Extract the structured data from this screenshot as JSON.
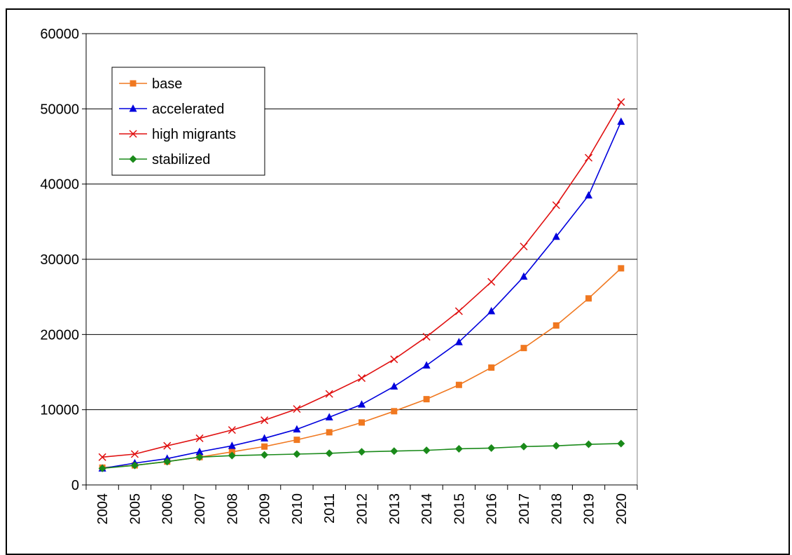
{
  "page": {
    "title": ""
  },
  "chart_data": {
    "type": "line",
    "title": "",
    "xlabel": "",
    "ylabel": "",
    "x": [
      "2004",
      "2005",
      "2006",
      "2007",
      "2008",
      "2009",
      "2010",
      "2011",
      "2012",
      "2013",
      "2014",
      "2015",
      "2016",
      "2017",
      "2018",
      "2019",
      "2020"
    ],
    "ylim": [
      0,
      60000
    ],
    "yticks": [
      0,
      10000,
      20000,
      30000,
      40000,
      50000,
      60000
    ],
    "ytick_labels": [
      "0",
      "10000",
      "20000",
      "30000",
      "40000",
      "50000",
      "60000"
    ],
    "grid": "horizontal",
    "legend_position": "top-left",
    "series": [
      {
        "name": "base",
        "color": "#f07820",
        "marker": "square",
        "values": [
          2300,
          2600,
          3100,
          3700,
          4400,
          5100,
          6000,
          7000,
          8300,
          9800,
          11400,
          13300,
          15600,
          18200,
          21200,
          24800,
          28800
        ]
      },
      {
        "name": "accelerated",
        "color": "#0000dd",
        "marker": "triangle",
        "values": [
          2200,
          2900,
          3500,
          4400,
          5200,
          6200,
          7400,
          9000,
          10700,
          13100,
          15900,
          19000,
          23100,
          27700,
          33000,
          38500,
          48300
        ]
      },
      {
        "name": "high migrants",
        "color": "#e01010",
        "marker": "x",
        "values": [
          3700,
          4100,
          5200,
          6200,
          7300,
          8600,
          10100,
          12100,
          14200,
          16700,
          19700,
          23100,
          27000,
          31700,
          37200,
          43500,
          50900
        ]
      },
      {
        "name": "stabilized",
        "color": "#1a8a1a",
        "marker": "diamond",
        "values": [
          2200,
          2600,
          3100,
          3700,
          3900,
          4000,
          4100,
          4200,
          4400,
          4500,
          4600,
          4800,
          4900,
          5100,
          5200,
          5400,
          5500
        ]
      }
    ]
  }
}
